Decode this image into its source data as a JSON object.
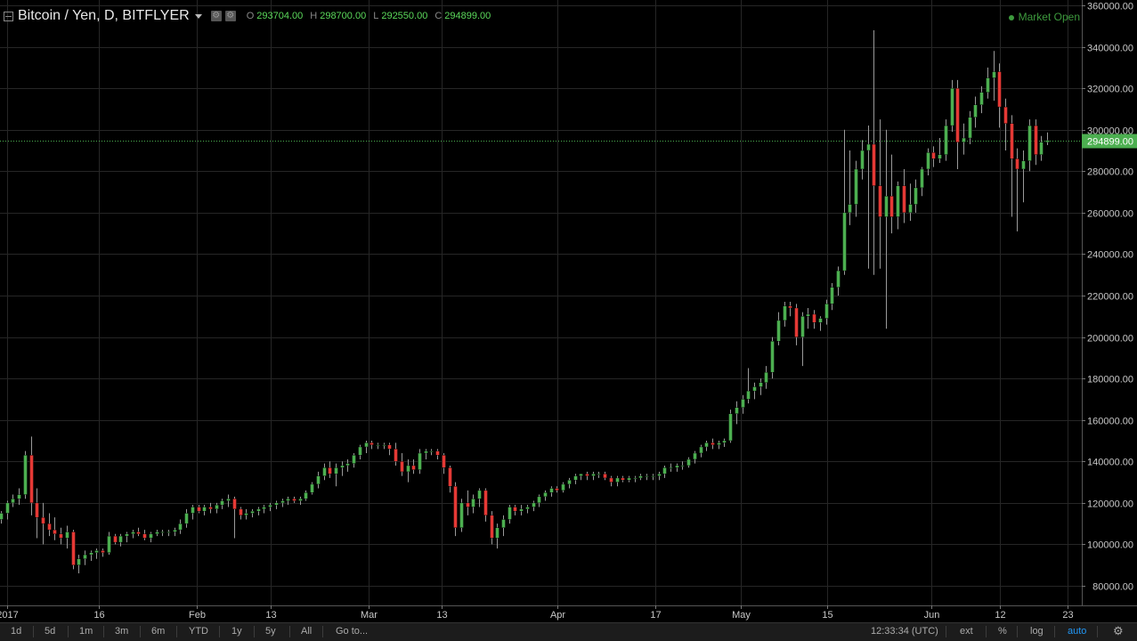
{
  "header": {
    "symbol": "Bitcoin / Yen, D, BITFLYER",
    "ohlc": [
      {
        "key": "O",
        "value": "293704.00"
      },
      {
        "key": "H",
        "value": "298700.00"
      },
      {
        "key": "L",
        "value": "292550.00"
      },
      {
        "key": "C",
        "value": "294899.00"
      }
    ],
    "market_status": "Market Open"
  },
  "bottombar": {
    "ranges": [
      "1d",
      "5d",
      "1m",
      "3m",
      "6m",
      "YTD",
      "1y",
      "5y",
      "All"
    ],
    "goto": "Go to...",
    "clock": "12:33:34 (UTC)",
    "ext": "ext",
    "percent": "%",
    "log": "log",
    "auto": "auto"
  },
  "chart_data": {
    "type": "candlestick",
    "title": "Bitcoin / Yen, D, BITFLYER",
    "x_tick_labels": [
      "2017",
      "16",
      "Feb",
      "13",
      "Mar",
      "13",
      "Apr",
      "17",
      "May",
      "15",
      "Jun",
      "12",
      "23"
    ],
    "y_tick_labels": [
      "80000.00",
      "100000.00",
      "120000.00",
      "140000.00",
      "160000.00",
      "180000.00",
      "200000.00",
      "220000.00",
      "240000.00",
      "260000.00",
      "280000.00",
      "300000.00",
      "320000.00",
      "340000.00",
      "360000.00"
    ],
    "ylim": [
      71000,
      362000
    ],
    "last_price": "294899.00",
    "grid": true,
    "up_color": "#4caf50",
    "down_color": "#e53935",
    "candles": [
      [
        112000,
        116000,
        110000,
        115000
      ],
      [
        115000,
        121000,
        112000,
        120000
      ],
      [
        120000,
        124000,
        118000,
        122000
      ],
      [
        122000,
        127000,
        119000,
        124000
      ],
      [
        124000,
        145000,
        122000,
        143000
      ],
      [
        143000,
        152000,
        114000,
        120000
      ],
      [
        120000,
        127000,
        103000,
        113000
      ],
      [
        113000,
        120000,
        100000,
        110000
      ],
      [
        110000,
        115000,
        104000,
        107000
      ],
      [
        107000,
        113000,
        102000,
        105000
      ],
      [
        105000,
        108000,
        100000,
        103000
      ],
      [
        103000,
        109000,
        98000,
        106000
      ],
      [
        106000,
        107000,
        88000,
        90000
      ],
      [
        90000,
        95000,
        86000,
        93000
      ],
      [
        93000,
        97000,
        90000,
        95000
      ],
      [
        95000,
        97000,
        92000,
        96000
      ],
      [
        96000,
        98000,
        93000,
        97000
      ],
      [
        97000,
        98000,
        94000,
        96000
      ],
      [
        96000,
        106000,
        95000,
        104000
      ],
      [
        104000,
        105000,
        100000,
        101000
      ],
      [
        101000,
        105000,
        99000,
        104000
      ],
      [
        104000,
        106000,
        101000,
        105000
      ],
      [
        105000,
        107000,
        103000,
        106000
      ],
      [
        106000,
        108000,
        104000,
        105000
      ],
      [
        105000,
        107000,
        102000,
        103000
      ],
      [
        103000,
        106000,
        101000,
        105000
      ],
      [
        105000,
        107000,
        104000,
        106000
      ],
      [
        106000,
        107000,
        104000,
        106000
      ],
      [
        106000,
        107000,
        104000,
        106000
      ],
      [
        106000,
        108000,
        104000,
        107000
      ],
      [
        107000,
        112000,
        105000,
        110000
      ],
      [
        110000,
        117000,
        108000,
        115000
      ],
      [
        115000,
        119000,
        112000,
        118000
      ],
      [
        118000,
        119000,
        115000,
        116000
      ],
      [
        116000,
        119000,
        114000,
        118000
      ],
      [
        118000,
        120000,
        115000,
        117000
      ],
      [
        117000,
        120000,
        115000,
        119000
      ],
      [
        119000,
        122000,
        117000,
        121000
      ],
      [
        121000,
        124000,
        118000,
        122000
      ],
      [
        122000,
        123000,
        103000,
        117000
      ],
      [
        117000,
        118000,
        112000,
        114000
      ],
      [
        114000,
        117000,
        112000,
        115000
      ],
      [
        115000,
        117000,
        113000,
        116000
      ],
      [
        116000,
        118000,
        114000,
        117000
      ],
      [
        117000,
        119000,
        115000,
        118000
      ],
      [
        118000,
        120000,
        116000,
        119000
      ],
      [
        119000,
        121000,
        117000,
        120000
      ],
      [
        120000,
        122000,
        118000,
        121000
      ],
      [
        121000,
        123000,
        119000,
        122000
      ],
      [
        122000,
        123000,
        120000,
        121000
      ],
      [
        121000,
        123000,
        119000,
        122000
      ],
      [
        122000,
        126000,
        121000,
        125000
      ],
      [
        125000,
        130000,
        124000,
        129000
      ],
      [
        129000,
        135000,
        127000,
        133000
      ],
      [
        133000,
        139000,
        131000,
        137000
      ],
      [
        137000,
        140000,
        132000,
        134000
      ],
      [
        134000,
        139000,
        128000,
        137000
      ],
      [
        137000,
        140000,
        133000,
        138000
      ],
      [
        138000,
        141000,
        135000,
        139000
      ],
      [
        139000,
        144000,
        137000,
        143000
      ],
      [
        143000,
        148000,
        141000,
        147000
      ],
      [
        147000,
        150000,
        144000,
        149000
      ],
      [
        149000,
        150000,
        146000,
        148000
      ],
      [
        148000,
        149000,
        146000,
        148000
      ],
      [
        148000,
        149000,
        146000,
        148000
      ],
      [
        148000,
        149000,
        143000,
        146000
      ],
      [
        146000,
        149000,
        138000,
        140000
      ],
      [
        140000,
        144000,
        133000,
        135000
      ],
      [
        135000,
        141000,
        130000,
        138000
      ],
      [
        138000,
        141000,
        134000,
        136000
      ],
      [
        136000,
        146000,
        134000,
        144000
      ],
      [
        144000,
        146000,
        141000,
        145000
      ],
      [
        145000,
        146000,
        143000,
        145000
      ],
      [
        145000,
        146000,
        141000,
        143000
      ],
      [
        143000,
        144000,
        134000,
        137000
      ],
      [
        137000,
        138000,
        125000,
        128000
      ],
      [
        128000,
        130000,
        104000,
        108000
      ],
      [
        108000,
        122000,
        106000,
        120000
      ],
      [
        120000,
        126000,
        114000,
        118000
      ],
      [
        118000,
        124000,
        115000,
        122000
      ],
      [
        122000,
        127000,
        118000,
        126000
      ],
      [
        126000,
        127000,
        111000,
        114000
      ],
      [
        114000,
        116000,
        100000,
        103000
      ],
      [
        103000,
        110000,
        98000,
        108000
      ],
      [
        108000,
        114000,
        104000,
        112000
      ],
      [
        112000,
        119000,
        110000,
        118000
      ],
      [
        118000,
        119000,
        114000,
        116000
      ],
      [
        116000,
        119000,
        114000,
        117000
      ],
      [
        117000,
        119000,
        115000,
        118000
      ],
      [
        118000,
        121000,
        116000,
        120000
      ],
      [
        120000,
        124000,
        118000,
        123000
      ],
      [
        123000,
        126000,
        121000,
        125000
      ],
      [
        125000,
        128000,
        123000,
        127000
      ],
      [
        127000,
        128000,
        125000,
        126000
      ],
      [
        126000,
        130000,
        125000,
        129000
      ],
      [
        129000,
        132000,
        127000,
        131000
      ],
      [
        131000,
        134000,
        129000,
        133000
      ],
      [
        133000,
        134000,
        131000,
        134000
      ],
      [
        134000,
        135000,
        131000,
        133000
      ],
      [
        133000,
        135000,
        131000,
        134000
      ],
      [
        134000,
        135000,
        132000,
        134000
      ],
      [
        134000,
        135000,
        131000,
        132000
      ],
      [
        132000,
        133000,
        128000,
        130000
      ],
      [
        130000,
        133000,
        128000,
        132000
      ],
      [
        132000,
        133000,
        130000,
        131000
      ],
      [
        131000,
        133000,
        130000,
        132000
      ],
      [
        132000,
        133000,
        130000,
        132000
      ],
      [
        132000,
        134000,
        131000,
        133000
      ],
      [
        133000,
        134000,
        131000,
        133000
      ],
      [
        133000,
        134000,
        131000,
        133000
      ],
      [
        133000,
        135000,
        131000,
        134000
      ],
      [
        134000,
        138000,
        132000,
        137000
      ],
      [
        137000,
        139000,
        135000,
        137000
      ],
      [
        137000,
        139000,
        135000,
        138000
      ],
      [
        138000,
        140000,
        136000,
        138000
      ],
      [
        138000,
        142000,
        137000,
        141000
      ],
      [
        141000,
        145000,
        139000,
        144000
      ],
      [
        144000,
        148000,
        142000,
        147000
      ],
      [
        147000,
        150000,
        145000,
        149000
      ],
      [
        149000,
        151000,
        146000,
        148000
      ],
      [
        148000,
        150000,
        146000,
        149000
      ],
      [
        149000,
        151000,
        147000,
        150000
      ],
      [
        150000,
        165000,
        149000,
        163000
      ],
      [
        163000,
        169000,
        158000,
        166000
      ],
      [
        166000,
        172000,
        163000,
        170000
      ],
      [
        170000,
        185000,
        168000,
        174000
      ],
      [
        174000,
        178000,
        170000,
        176000
      ],
      [
        176000,
        180000,
        172000,
        178000
      ],
      [
        178000,
        186000,
        175000,
        183000
      ],
      [
        183000,
        200000,
        180000,
        198000
      ],
      [
        198000,
        212000,
        196000,
        208000
      ],
      [
        208000,
        217000,
        205000,
        215000
      ],
      [
        215000,
        217000,
        210000,
        214000
      ],
      [
        214000,
        216000,
        196000,
        200000
      ],
      [
        200000,
        212000,
        186000,
        210000
      ],
      [
        210000,
        214000,
        204000,
        211000
      ],
      [
        211000,
        213000,
        204000,
        207000
      ],
      [
        207000,
        210000,
        203000,
        209000
      ],
      [
        209000,
        218000,
        206000,
        216000
      ],
      [
        216000,
        226000,
        213000,
        224000
      ],
      [
        224000,
        234000,
        220000,
        232000
      ],
      [
        232000,
        300000,
        230000,
        260000
      ],
      [
        260000,
        290000,
        254000,
        264000
      ],
      [
        264000,
        285000,
        258000,
        281000
      ],
      [
        281000,
        295000,
        276000,
        290000
      ],
      [
        290000,
        302000,
        233000,
        293000
      ],
      [
        293000,
        348000,
        230000,
        273000
      ],
      [
        273000,
        305000,
        233000,
        258000
      ],
      [
        258000,
        300000,
        204000,
        268000
      ],
      [
        268000,
        288000,
        250000,
        258000
      ],
      [
        258000,
        275000,
        252000,
        273000
      ],
      [
        273000,
        281000,
        255000,
        260000
      ],
      [
        260000,
        274000,
        256000,
        264000
      ],
      [
        264000,
        276000,
        260000,
        272000
      ],
      [
        272000,
        282000,
        268000,
        281000
      ],
      [
        281000,
        291000,
        278000,
        289000
      ],
      [
        289000,
        292000,
        282000,
        286000
      ],
      [
        286000,
        296000,
        284000,
        288000
      ],
      [
        288000,
        305000,
        285000,
        302000
      ],
      [
        302000,
        324000,
        299000,
        320000
      ],
      [
        320000,
        324000,
        281000,
        294000
      ],
      [
        294000,
        303000,
        288000,
        296000
      ],
      [
        296000,
        309000,
        293000,
        306000
      ],
      [
        306000,
        316000,
        301000,
        312000
      ],
      [
        312000,
        321000,
        308000,
        318000
      ],
      [
        318000,
        330000,
        315000,
        325000
      ],
      [
        325000,
        338000,
        314000,
        328000
      ],
      [
        328000,
        332000,
        301000,
        311000
      ],
      [
        311000,
        315000,
        290000,
        303000
      ],
      [
        303000,
        307000,
        258000,
        286000
      ],
      [
        286000,
        291000,
        251000,
        281000
      ],
      [
        281000,
        290000,
        265000,
        285000
      ],
      [
        285000,
        305000,
        280000,
        302000
      ],
      [
        302000,
        305000,
        283000,
        288000
      ],
      [
        288000,
        297000,
        285000,
        294000
      ],
      [
        294000,
        298700,
        292550,
        294899
      ]
    ]
  }
}
